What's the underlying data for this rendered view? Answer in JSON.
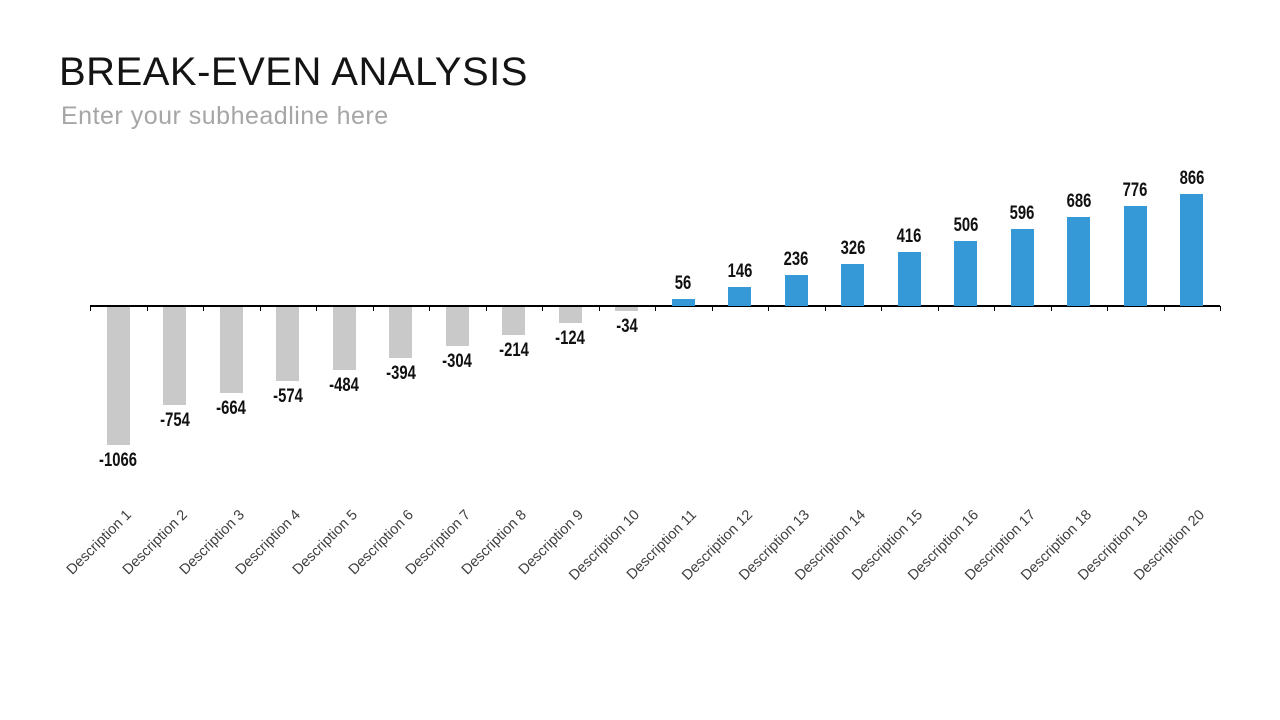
{
  "slide": {
    "title": "BREAK-EVEN ANALYSIS",
    "subtitle": "Enter your subheadline here"
  },
  "chart_data": {
    "type": "bar",
    "title": "BREAK-EVEN ANALYSIS",
    "subtitle": "Enter your subheadline here",
    "categories": [
      "Description 1",
      "Description 2",
      "Description 3",
      "Description 4",
      "Description 5",
      "Description 6",
      "Description 7",
      "Description 8",
      "Description 9",
      "Description 10",
      "Description 11",
      "Description 12",
      "Description 13",
      "Description 14",
      "Description 15",
      "Description 16",
      "Description 17",
      "Description 18",
      "Description 19",
      "Description 20"
    ],
    "values": [
      -1066,
      -754,
      -664,
      -574,
      -484,
      -394,
      -304,
      -214,
      -124,
      -34,
      56,
      146,
      236,
      326,
      416,
      506,
      596,
      686,
      776,
      866
    ],
    "xlabel": "",
    "ylabel": "",
    "ylim": [
      -1100,
      900
    ],
    "baseline": 0,
    "grid": false,
    "legend": false,
    "data_labels": true,
    "x_tick_rotation_deg": 45,
    "colors": {
      "positive_bar": "#3598d7",
      "negative_bar": "#c9c9c9",
      "axis": "#000000",
      "value_label": "#111111",
      "category_label": "#404040",
      "title": "#141414",
      "subtitle": "#a6a6a6"
    }
  }
}
